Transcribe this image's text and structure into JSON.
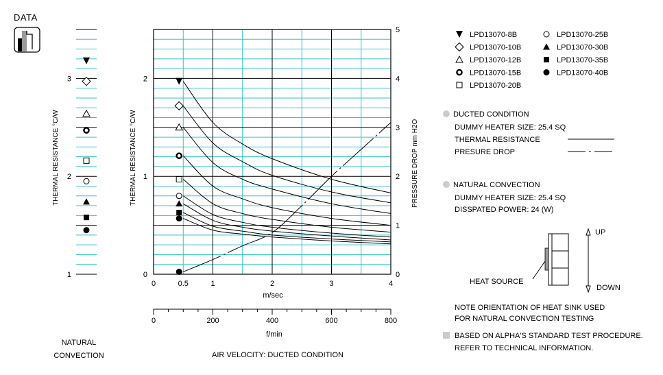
{
  "badge": {
    "title": "DATA",
    "icon": "data-chart-icon"
  },
  "natural_panel": {
    "ylabel": "THERMAL  RESISTANCE   °C/W",
    "yticks": [
      "3",
      "2",
      "1"
    ],
    "caption_line1": "NATURAL",
    "caption_line2": "CONVECTION"
  },
  "main_axes": {
    "left_ylabel": "THERMAL  RESISTANCE   °C/W",
    "right_ylabel": "PRESSURE  DROP   mm H2O",
    "left_yticks": [
      "2",
      "1",
      "0"
    ],
    "right_yticks": [
      "5",
      "4",
      "3",
      "2",
      "1",
      "0"
    ],
    "x_ticks_ms": [
      "0",
      "0.5",
      "1",
      "2",
      "3",
      "4"
    ],
    "x_unit_ms": "m/sec",
    "x_ticks_fmin": [
      "0",
      "200",
      "400",
      "600",
      "800"
    ],
    "x_unit_fmin": "f/min",
    "caption": "AIR VELOCITY:  DUCTED CONDITION"
  },
  "legend": [
    {
      "marker": "triangle-down-filled",
      "label": "LPD13070-8B"
    },
    {
      "marker": "circle-open",
      "label": "LPD13070-25B"
    },
    {
      "marker": "diamond-open",
      "label": "LPD13070-10B"
    },
    {
      "marker": "triangle-up-filled",
      "label": "LPD13070-30B"
    },
    {
      "marker": "triangle-up-open",
      "label": "LPD13070-12B"
    },
    {
      "marker": "square-filled",
      "label": "LPD13070-35B"
    },
    {
      "marker": "circle-thick",
      "label": "LPD13070-15B"
    },
    {
      "marker": "circle-filled",
      "label": "LPD13070-40B"
    },
    {
      "marker": "square-open",
      "label": "LPD13070-20B"
    }
  ],
  "ducted": {
    "title": "DUCTED CONDITION",
    "heater": "DUMMY HEATER SIZE:  25.4 SQ",
    "thermal_resistance": "THERMAL RESISTANCE",
    "pressure_drop": "PRESURE DROP"
  },
  "natural": {
    "title": "NATURAL CONVECTION",
    "heater": "DUMMY HEATER SIZE:  25.4 SQ",
    "power": "DISSPATED POWER:   24 (W)"
  },
  "orientation": {
    "up": "UP",
    "down": "DOWN",
    "heat_source": "HEAT SOURCE",
    "note_line1": "NOTE ORIENTATION OF HEAT SINK USED",
    "note_line2": "FOR NATURAL CONVECTION TESTING"
  },
  "footnote": {
    "line1": "BASED ON ALPHA'S STANDARD TEST PROCEDURE.",
    "line2": "REFER TO TECHNICAL INFORMATION."
  },
  "colors": {
    "grid_minor": "#33c4cc",
    "grid_major": "#000000",
    "bullet": "#cccccc"
  },
  "chart_data": [
    {
      "type": "scatter",
      "panel": "natural-convection",
      "ylabel": "THERMAL  RESISTANCE   °C/W",
      "ylim": [
        1,
        3.5
      ],
      "grid": true,
      "series": [
        {
          "name": "LPD13070-8B",
          "marker": "triangle-down-filled",
          "values": [
            3.18
          ]
        },
        {
          "name": "LPD13070-10B",
          "marker": "diamond-open",
          "values": [
            2.97
          ]
        },
        {
          "name": "LPD13070-12B",
          "marker": "triangle-up-open",
          "values": [
            2.64
          ]
        },
        {
          "name": "LPD13070-15B",
          "marker": "circle-thick",
          "values": [
            2.47
          ]
        },
        {
          "name": "LPD13070-20B",
          "marker": "square-open",
          "values": [
            2.16
          ]
        },
        {
          "name": "LPD13070-25B",
          "marker": "circle-open",
          "values": [
            1.95
          ]
        },
        {
          "name": "LPD13070-30B",
          "marker": "triangle-up-filled",
          "values": [
            1.74
          ]
        },
        {
          "name": "LPD13070-35B",
          "marker": "square-filled",
          "values": [
            1.58
          ]
        },
        {
          "name": "LPD13070-40B",
          "marker": "circle-filled",
          "values": [
            1.45
          ]
        }
      ]
    },
    {
      "type": "line",
      "panel": "ducted-condition",
      "xlabel": "m/sec",
      "xlim": [
        0,
        4
      ],
      "ylim_left": [
        0,
        2
      ],
      "ylim_right": [
        0,
        5
      ],
      "grid": true,
      "thermal_resistance_series": [
        {
          "name": "LPD13070-8B",
          "marker": "triangle-down-filled",
          "x": [
            0.5,
            1,
            1.5,
            2,
            3,
            4
          ],
          "y": [
            1.97,
            1.55,
            1.33,
            1.18,
            0.97,
            0.83
          ]
        },
        {
          "name": "LPD13070-10B",
          "marker": "diamond-open",
          "x": [
            0.5,
            1,
            1.5,
            2,
            3,
            4
          ],
          "y": [
            1.72,
            1.34,
            1.15,
            1.01,
            0.84,
            0.73
          ]
        },
        {
          "name": "LPD13070-12B",
          "marker": "triangle-up-open",
          "x": [
            0.5,
            1,
            1.5,
            2,
            3,
            4
          ],
          "y": [
            1.5,
            1.14,
            0.97,
            0.87,
            0.72,
            0.62
          ]
        },
        {
          "name": "LPD13070-15B",
          "marker": "circle-thick",
          "x": [
            0.5,
            1,
            1.5,
            2,
            3,
            4
          ],
          "y": [
            1.21,
            0.9,
            0.77,
            0.68,
            0.57,
            0.5
          ]
        },
        {
          "name": "LPD13070-20B",
          "marker": "square-open",
          "x": [
            0.5,
            1,
            1.5,
            2,
            3,
            4
          ],
          "y": [
            0.97,
            0.72,
            0.62,
            0.56,
            0.48,
            0.43
          ]
        },
        {
          "name": "LPD13070-25B",
          "marker": "circle-open",
          "x": [
            0.5,
            1,
            1.5,
            2,
            3,
            4
          ],
          "y": [
            0.8,
            0.61,
            0.53,
            0.48,
            0.42,
            0.38
          ]
        },
        {
          "name": "LPD13070-30B",
          "marker": "triangle-up-filled",
          "x": [
            0.5,
            1,
            1.5,
            2,
            3,
            4
          ],
          "y": [
            0.72,
            0.55,
            0.48,
            0.44,
            0.39,
            0.35
          ]
        },
        {
          "name": "LPD13070-35B",
          "marker": "square-filled",
          "x": [
            0.5,
            1,
            1.5,
            2,
            3,
            4
          ],
          "y": [
            0.63,
            0.49,
            0.44,
            0.4,
            0.36,
            0.33
          ]
        },
        {
          "name": "LPD13070-40B",
          "marker": "circle-filled",
          "x": [
            0.5,
            1,
            1.5,
            2,
            3,
            4
          ],
          "y": [
            0.57,
            0.45,
            0.41,
            0.38,
            0.34,
            0.31
          ]
        }
      ],
      "pressure_drop_series": {
        "marker": "circle-filled",
        "x": [
          0.5,
          1,
          1.5,
          2,
          2.5,
          3,
          3.5,
          4
        ],
        "y": [
          0.05,
          0.3,
          0.58,
          0.85,
          1.4,
          2.0,
          2.55,
          3.1
        ]
      }
    }
  ]
}
